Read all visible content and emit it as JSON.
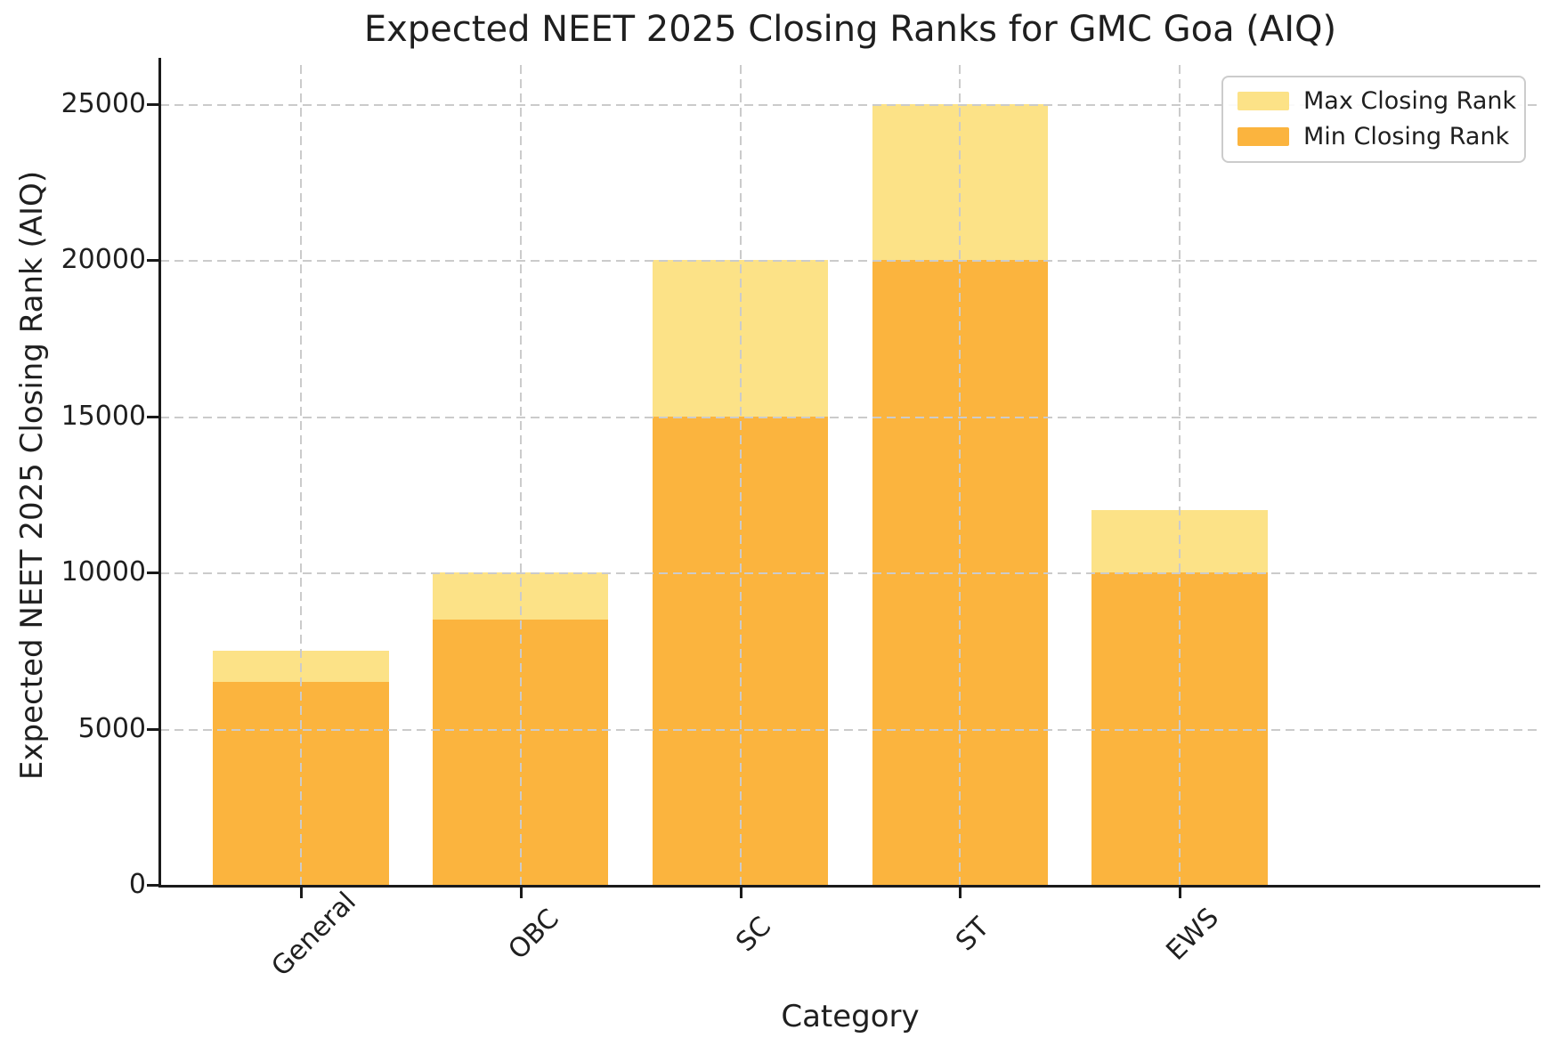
{
  "chart_data": {
    "type": "bar",
    "title": "Expected NEET 2025 Closing Ranks for GMC Goa (AIQ)",
    "xlabel": "Category",
    "ylabel": "Expected NEET 2025 Closing Rank (AIQ)",
    "categories": [
      "General",
      "OBC",
      "SC",
      "ST",
      "EWS"
    ],
    "series": [
      {
        "name": "Max Closing Rank",
        "color": "#FCE287",
        "values": [
          7500,
          10000,
          20000,
          25000,
          12000
        ]
      },
      {
        "name": "Min Closing Rank",
        "color": "#FBB43E",
        "values": [
          6500,
          8500,
          15000,
          20000,
          10000
        ]
      }
    ],
    "bar_mode": "overlaid",
    "bar_width_fraction": 0.8,
    "ylim": [
      0,
      26250
    ],
    "yticks": [
      0,
      5000,
      10000,
      15000,
      20000,
      25000
    ],
    "grid": {
      "visible": true,
      "style": "dashed",
      "color": "#cccccc"
    },
    "legend": {
      "position": "upper right"
    },
    "colors": {
      "spine": "#1a1a1a",
      "text": "#262626",
      "background": "#ffffff"
    }
  }
}
